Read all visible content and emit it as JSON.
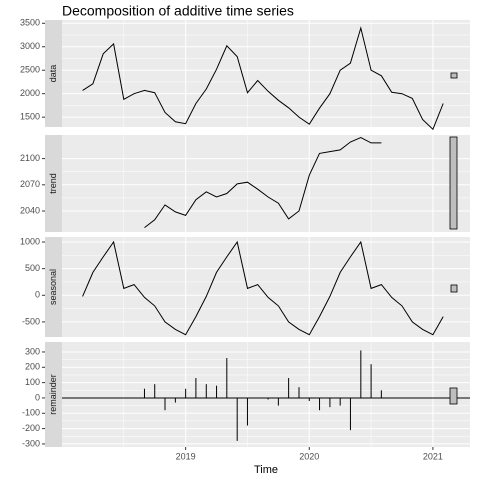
{
  "chart_data": {
    "type": "facet",
    "title": "Decomposition of additive time series",
    "x_label": "Time",
    "x": [
      2018.167,
      2018.25,
      2018.333,
      2018.417,
      2018.5,
      2018.583,
      2018.667,
      2018.75,
      2018.833,
      2018.917,
      2019.0,
      2019.083,
      2019.167,
      2019.25,
      2019.333,
      2019.417,
      2019.5,
      2019.583,
      2019.667,
      2019.75,
      2019.833,
      2019.917,
      2020.0,
      2020.083,
      2020.167,
      2020.25,
      2020.333,
      2020.417,
      2020.5,
      2020.583,
      2020.667,
      2020.75,
      2020.833,
      2020.917,
      2021.0,
      2021.083
    ],
    "xlim": [
      2018.0,
      2021.3
    ],
    "xticks": [
      2019,
      2020,
      2021
    ],
    "grid": true,
    "panels": [
      {
        "name": "data",
        "type": "line",
        "color": "#000000",
        "ylim": [
          1290,
          3570
        ],
        "yticks": [
          1500,
          2000,
          2500,
          3000,
          3500
        ],
        "values": [
          2070,
          2210,
          2850,
          3060,
          1880,
          2000,
          2070,
          2020,
          1600,
          1400,
          1360,
          1790,
          2100,
          2520,
          3020,
          2790,
          2020,
          2280,
          2050,
          1860,
          1700,
          1500,
          1350,
          1690,
          2000,
          2500,
          2650,
          3400,
          2500,
          2380,
          2030,
          2000,
          1900,
          1450,
          1240,
          1790
        ]
      },
      {
        "name": "trend",
        "type": "line",
        "color": "#000000",
        "ylim": [
          2016,
          2127
        ],
        "yticks": [
          2040,
          2070,
          2100
        ],
        "values": [
          null,
          null,
          null,
          null,
          null,
          null,
          2021,
          2030,
          2047,
          2039,
          2035,
          2053,
          2062,
          2056,
          2060,
          2071,
          2073,
          2065,
          2056,
          2049,
          2031,
          2040,
          2081,
          2106,
          2108,
          2110,
          2119,
          2124,
          2118,
          2118,
          null,
          null,
          null,
          null,
          null,
          null
        ]
      },
      {
        "name": "seasonal",
        "type": "line",
        "color": "#000000",
        "ylim": [
          -783,
          1094
        ],
        "yticks": [
          -500,
          0,
          500,
          1000
        ],
        "values": [
          -20,
          430,
          720,
          1000,
          130,
          200,
          -40,
          -200,
          -500,
          -640,
          -740,
          -400,
          -20,
          430,
          720,
          1000,
          130,
          200,
          -40,
          -200,
          -500,
          -640,
          -740,
          -400,
          -20,
          430,
          720,
          1000,
          130,
          200,
          -40,
          -200,
          -500,
          -640,
          -740,
          -400
        ]
      },
      {
        "name": "remainder",
        "type": "bar",
        "color": "#000000",
        "ylim": [
          -320,
          365
        ],
        "yticks": [
          -300,
          -200,
          -100,
          0,
          100,
          200,
          300
        ],
        "values": [
          null,
          null,
          null,
          null,
          null,
          null,
          60,
          90,
          -80,
          -30,
          60,
          130,
          90,
          80,
          260,
          -280,
          -180,
          0,
          -10,
          -50,
          130,
          70,
          -20,
          -80,
          -60,
          -50,
          -210,
          310,
          220,
          50,
          null,
          null,
          null,
          null,
          null,
          null
        ]
      }
    ]
  }
}
